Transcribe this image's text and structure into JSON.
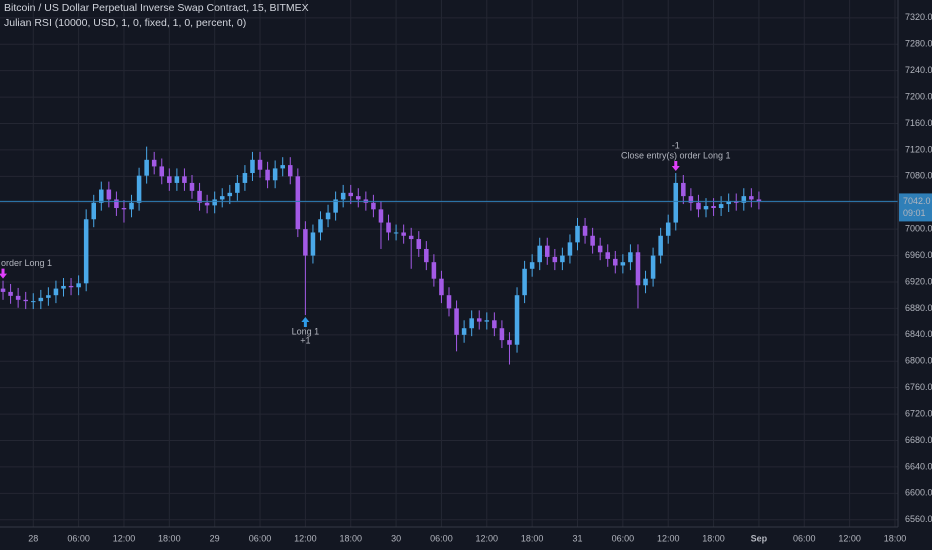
{
  "chart_data": {
    "type": "candlestick",
    "title": "Bitcoin / US Dollar Perpetual Inverse Swap Contract, 15, BITMEX",
    "subtitle": "Julian RSI (10000, USD, 1, 0, fixed, 1, 0, percent, 0)",
    "x": [
      -4,
      -3,
      -2,
      -1,
      0,
      1,
      2,
      3,
      4,
      5,
      6,
      7,
      8,
      9,
      10,
      11,
      12,
      13,
      14,
      15,
      16,
      17,
      18,
      19,
      20,
      21,
      22,
      23,
      24,
      25,
      26,
      27,
      28,
      29,
      30,
      31,
      32,
      33,
      34,
      35,
      36,
      37,
      38,
      39,
      40,
      41,
      42,
      43,
      44,
      45,
      46,
      47,
      48,
      49,
      50,
      51,
      52,
      53,
      54,
      55,
      56,
      57,
      58,
      59,
      60,
      61,
      62,
      63,
      64,
      65,
      66,
      67,
      68,
      69,
      70,
      71,
      72,
      73,
      74,
      75,
      76,
      77,
      78,
      79,
      80,
      81,
      82,
      83,
      84,
      85,
      86,
      87,
      88,
      89,
      90,
      91,
      92,
      93,
      94,
      95,
      96
    ],
    "open": [
      6910,
      6905,
      6899,
      6893,
      6891,
      6891,
      6896,
      6900,
      6910,
      6914,
      6912,
      6918,
      7015,
      7040,
      7060,
      7045,
      7032,
      7030,
      7040,
      7081,
      7105,
      7095,
      7080,
      7070,
      7080,
      7070,
      7058,
      7040,
      7036,
      7045,
      7050,
      7055,
      7070,
      7085,
      7105,
      7090,
      7074,
      7092,
      7097,
      7080,
      7000,
      6960,
      6995,
      7015,
      7025,
      7045,
      7055,
      7050,
      7045,
      7040,
      7030,
      7010,
      6995,
      6995,
      6990,
      6985,
      6970,
      6950,
      6925,
      6900,
      6880,
      6840,
      6850,
      6865,
      6860,
      6862,
      6850,
      6832,
      6825,
      6900,
      6940,
      6950,
      6975,
      6958,
      6950,
      6960,
      6980,
      7005,
      6990,
      6975,
      6965,
      6955,
      6945,
      6950,
      6965,
      6915,
      6925,
      6960,
      6990,
      7010,
      7070,
      7050,
      7040,
      7030,
      7035,
      7032,
      7038,
      7042,
      7040,
      7050,
      7045
    ],
    "high": [
      6922,
      6917,
      6911,
      6905,
      6903,
      6908,
      6912,
      6922,
      6926,
      6926,
      6930,
      7030,
      7052,
      7072,
      7072,
      7057,
      7044,
      7052,
      7093,
      7125,
      7117,
      7107,
      7092,
      7092,
      7092,
      7082,
      7070,
      7052,
      7057,
      7062,
      7067,
      7082,
      7097,
      7117,
      7117,
      7102,
      7104,
      7109,
      7109,
      7092,
      7012,
      7007,
      7027,
      7037,
      7057,
      7067,
      7067,
      7062,
      7057,
      7052,
      7042,
      7022,
      7007,
      7007,
      7002,
      6997,
      6982,
      6962,
      6937,
      6912,
      6892,
      6862,
      6877,
      6877,
      6874,
      6874,
      6862,
      6844,
      6912,
      6952,
      6962,
      6987,
      6987,
      6970,
      6972,
      6992,
      7017,
      7017,
      7002,
      6987,
      6977,
      6967,
      6962,
      6977,
      6977,
      6937,
      6972,
      7002,
      7022,
      7085,
      7082,
      7062,
      7052,
      7047,
      7047,
      7050,
      7054,
      7054,
      7062,
      7062,
      7057
    ],
    "low": [
      6893,
      6887,
      6881,
      6879,
      6879,
      6879,
      6884,
      6888,
      6898,
      6900,
      6900,
      6906,
      7003,
      7028,
      7033,
      7020,
      7010,
      7018,
      7028,
      7069,
      7083,
      7068,
      7058,
      7058,
      7058,
      7046,
      7028,
      7024,
      7024,
      7033,
      7038,
      7043,
      7058,
      7073,
      7078,
      7062,
      7062,
      7080,
      7068,
      6988,
      6870,
      6948,
      6983,
      7003,
      7013,
      7033,
      7038,
      7033,
      7028,
      7018,
      6970,
      6983,
      6983,
      6978,
      6940,
      6958,
      6938,
      6913,
      6888,
      6868,
      6815,
      6828,
      6838,
      6848,
      6848,
      6838,
      6820,
      6795,
      6813,
      6888,
      6928,
      6938,
      6946,
      6938,
      6938,
      6948,
      6968,
      6978,
      6963,
      6953,
      6943,
      6933,
      6933,
      6938,
      6880,
      6903,
      6913,
      6948,
      6978,
      6998,
      7038,
      7028,
      7018,
      7018,
      7020,
      7020,
      7026,
      7028,
      7028,
      7033,
      7030
    ],
    "close": [
      6905,
      6899,
      6893,
      6891,
      6891,
      6896,
      6900,
      6910,
      6914,
      6912,
      6918,
      7015,
      7040,
      7060,
      7045,
      7032,
      7030,
      7040,
      7081,
      7105,
      7095,
      7080,
      7070,
      7080,
      7070,
      7058,
      7040,
      7036,
      7045,
      7050,
      7055,
      7070,
      7085,
      7105,
      7090,
      7074,
      7092,
      7097,
      7080,
      7000,
      6960,
      6995,
      7015,
      7025,
      7045,
      7055,
      7050,
      7045,
      7040,
      7030,
      7010,
      6995,
      6995,
      6990,
      6985,
      6970,
      6950,
      6925,
      6900,
      6880,
      6840,
      6850,
      6865,
      6860,
      6862,
      6850,
      6832,
      6825,
      6900,
      6940,
      6950,
      6975,
      6958,
      6950,
      6960,
      6980,
      7005,
      6990,
      6975,
      6965,
      6955,
      6945,
      6950,
      6965,
      6915,
      6925,
      6960,
      6990,
      7010,
      7070,
      7050,
      7040,
      7030,
      7035,
      7032,
      7038,
      7042,
      7040,
      7050,
      7045,
      7042
    ],
    "up_color": "#4aa8e8",
    "down_color": "#a35ae6",
    "xlim": [
      -4.4,
      114.4
    ],
    "ylim": [
      6549,
      7347
    ],
    "xticks": [
      {
        "value": 0,
        "label": "28"
      },
      {
        "value": 6,
        "label": "06:00"
      },
      {
        "value": 12,
        "label": "12:00"
      },
      {
        "value": 18,
        "label": "18:00"
      },
      {
        "value": 24,
        "label": "29"
      },
      {
        "value": 30,
        "label": "06:00"
      },
      {
        "value": 36,
        "label": "12:00"
      },
      {
        "value": 42,
        "label": "18:00"
      },
      {
        "value": 48,
        "label": "30"
      },
      {
        "value": 54,
        "label": "06:00"
      },
      {
        "value": 60,
        "label": "12:00"
      },
      {
        "value": 66,
        "label": "18:00"
      },
      {
        "value": 72,
        "label": "31"
      },
      {
        "value": 78,
        "label": "06:00"
      },
      {
        "value": 84,
        "label": "12:00"
      },
      {
        "value": 90,
        "label": "18:00"
      },
      {
        "value": 96,
        "label": "Sep",
        "bold": true
      },
      {
        "value": 102,
        "label": "06:00"
      },
      {
        "value": 108,
        "label": "12:00"
      },
      {
        "value": 114,
        "label": "18:00"
      }
    ],
    "yticks": [
      {
        "value": 6560,
        "label": "6560.0"
      },
      {
        "value": 6600,
        "label": "6600.0"
      },
      {
        "value": 6640,
        "label": "6640.0"
      },
      {
        "value": 6680,
        "label": "6680.0"
      },
      {
        "value": 6720,
        "label": "6720.0"
      },
      {
        "value": 6760,
        "label": "6760.0"
      },
      {
        "value": 6800,
        "label": "6800.0"
      },
      {
        "value": 6840,
        "label": "6840.0"
      },
      {
        "value": 6880,
        "label": "6880.0"
      },
      {
        "value": 6920,
        "label": "6920.0"
      },
      {
        "value": 6960,
        "label": "6960.0"
      },
      {
        "value": 7000,
        "label": "7000.0"
      },
      {
        "value": 7040,
        "label": "7040.0"
      },
      {
        "value": 7080,
        "label": "7080.0"
      },
      {
        "value": 7120,
        "label": "7120.0"
      },
      {
        "value": 7160,
        "label": "7160.0"
      },
      {
        "value": 7200,
        "label": "7200.0"
      },
      {
        "value": 7240,
        "label": "7240.0"
      },
      {
        "value": 7280,
        "label": "7280.0"
      },
      {
        "value": 7320,
        "label": "7320.0"
      }
    ],
    "grid": true,
    "last_price": {
      "value": 7042,
      "label": "7042.0",
      "color": "#2f7fb8"
    },
    "countdown": "09:01",
    "trades": [
      {
        "side": "exit",
        "x": -4,
        "price": 6922,
        "label": "order Long 1"
      },
      {
        "side": "entry",
        "x": 36,
        "price": 6870,
        "label": "Long 1",
        "qty": "+1"
      },
      {
        "side": "exit",
        "x": 85,
        "price": 7085,
        "label": "Close entry(s) order Long 1",
        "qty": "-1"
      }
    ]
  }
}
